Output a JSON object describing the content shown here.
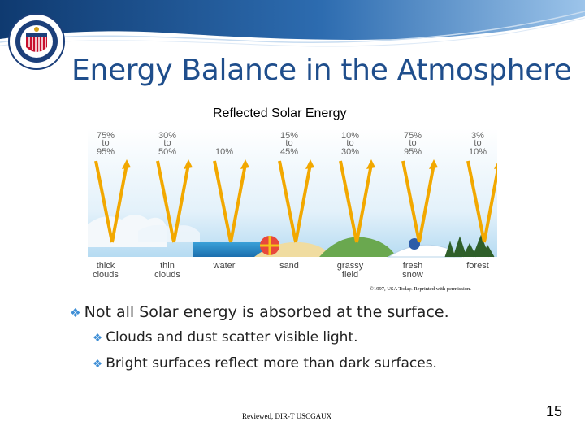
{
  "slide": {
    "title": "Energy Balance in the Atmosphere",
    "seal_text": "U.S. COAST GUARD AUXILIARY",
    "figure_caption": "Reflected Solar Energy",
    "credit": "©1997, USA Today. Reprinted with permission.",
    "bullets": [
      "Not all Solar energy is absorbed at the surface.",
      "Clouds and dust scatter visible light.",
      "Bright surfaces reflect more than dark surfaces."
    ],
    "footer": "Reviewed, DIR-T USCGAUX",
    "page_number": "15"
  },
  "figure": {
    "columns": [
      {
        "top": "75%",
        "mid": "to",
        "bottom": "95%",
        "ground": [
          "thick",
          "clouds"
        ]
      },
      {
        "top": "30%",
        "mid": "to",
        "bottom": "50%",
        "ground": [
          "thin",
          "clouds"
        ]
      },
      {
        "top": "",
        "mid": "",
        "bottom": "10%",
        "ground": [
          "water"
        ]
      },
      {
        "top": "15%",
        "mid": "to",
        "bottom": "45%",
        "ground": [
          "sand"
        ]
      },
      {
        "top": "10%",
        "mid": "to",
        "bottom": "30%",
        "ground": [
          "grassy",
          "field"
        ]
      },
      {
        "top": "75%",
        "mid": "to",
        "bottom": "95%",
        "ground": [
          "fresh",
          "snow"
        ]
      },
      {
        "top": "3%",
        "mid": "to",
        "bottom": "10%",
        "ground": [
          "forest"
        ]
      }
    ]
  },
  "colors": {
    "title": "#1f4e8c",
    "bullet_mark": "#3f8fd6",
    "arrow": "#f2a800",
    "swoosh": "#1c4f8f"
  }
}
